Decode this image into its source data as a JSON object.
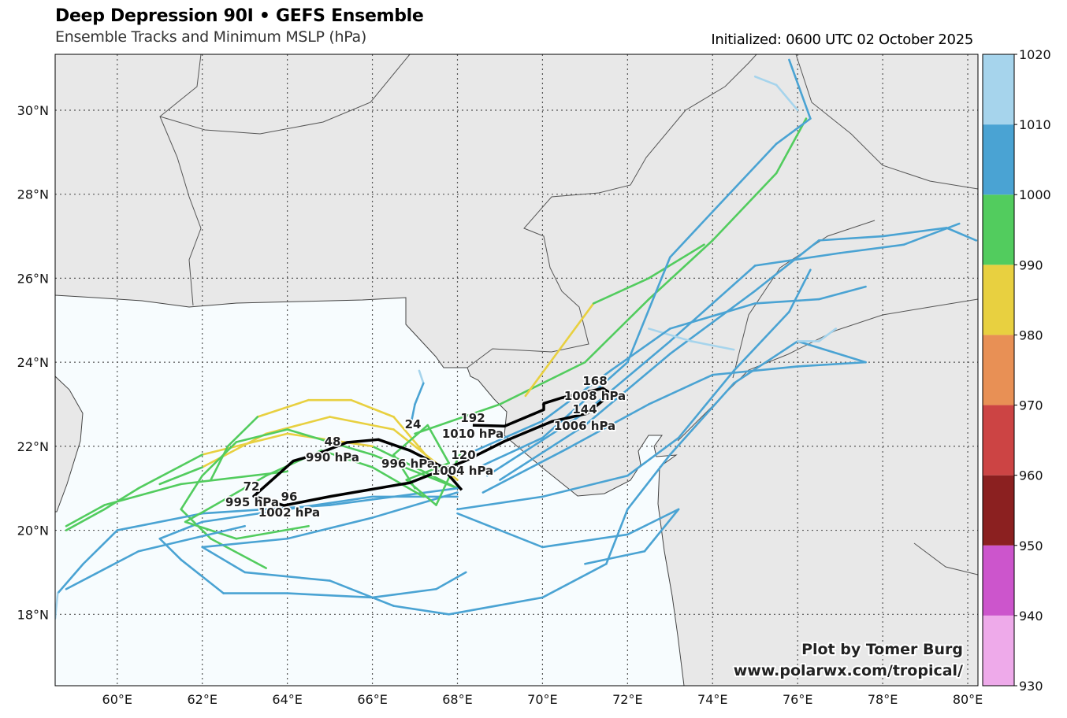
{
  "header": {
    "title": "Deep Depression 90I • GEFS Ensemble",
    "subtitle": "Ensemble Tracks and Minimum MSLP (hPa)",
    "initialized": "Initialized: 0600 UTC 02 October 2025"
  },
  "credit": {
    "line1": "Plot by Tomer Burg",
    "line2": "www.polarwx.com/tropical/"
  },
  "chart_data": {
    "type": "map-tracks",
    "extent": {
      "lon": [
        58.54,
        80.24
      ],
      "lat": [
        16.3,
        31.33
      ]
    },
    "lon_ticks": [
      {
        "v": 60,
        "label": "60°E"
      },
      {
        "v": 62,
        "label": "62°E"
      },
      {
        "v": 64,
        "label": "64°E"
      },
      {
        "v": 66,
        "label": "66°E"
      },
      {
        "v": 68,
        "label": "68°E"
      },
      {
        "v": 70,
        "label": "70°E"
      },
      {
        "v": 72,
        "label": "72°E"
      },
      {
        "v": 74,
        "label": "74°E"
      },
      {
        "v": 76,
        "label": "76°E"
      },
      {
        "v": 78,
        "label": "78°E"
      },
      {
        "v": 80,
        "label": "80°E"
      }
    ],
    "lat_ticks": [
      {
        "v": 18,
        "label": "18°N"
      },
      {
        "v": 20,
        "label": "20°N"
      },
      {
        "v": 22,
        "label": "22°N"
      },
      {
        "v": 24,
        "label": "24°N"
      },
      {
        "v": 26,
        "label": "26°N"
      },
      {
        "v": 28,
        "label": "28°N"
      },
      {
        "v": 30,
        "label": "30°N"
      }
    ],
    "colorbar": {
      "ticks": [
        "930",
        "940",
        "950",
        "960",
        "970",
        "980",
        "990",
        "1000",
        "1010",
        "1020"
      ],
      "bins": [
        {
          "min": 930,
          "max": 940,
          "color": "#eeaaea"
        },
        {
          "min": 940,
          "max": 950,
          "color": "#cc55cc"
        },
        {
          "min": 950,
          "max": 960,
          "color": "#8b2020"
        },
        {
          "min": 960,
          "max": 970,
          "color": "#cc4444"
        },
        {
          "min": 970,
          "max": 980,
          "color": "#e89055"
        },
        {
          "min": 980,
          "max": 990,
          "color": "#e8d040"
        },
        {
          "min": 990,
          "max": 1000,
          "color": "#52cc5e"
        },
        {
          "min": 1000,
          "max": 1010,
          "color": "#4aa3d3"
        },
        {
          "min": 1010,
          "max": 1020,
          "color": "#a6d4ec"
        }
      ]
    },
    "mean_track": [
      [
        68.1,
        20.96
      ],
      [
        67.62,
        21.52
      ],
      [
        66.88,
        21.9
      ],
      [
        66.14,
        22.16
      ],
      [
        65.4,
        22.09
      ],
      [
        64.66,
        21.8
      ],
      [
        64.14,
        21.65
      ],
      [
        63.21,
        20.81
      ],
      [
        63.92,
        20.59
      ],
      [
        65.03,
        20.81
      ],
      [
        66.88,
        21.13
      ],
      [
        68.18,
        21.65
      ],
      [
        69.11,
        22.12
      ],
      [
        70.22,
        22.59
      ],
      [
        71.05,
        22.78
      ],
      [
        71.61,
        23.25
      ],
      [
        71.42,
        23.38
      ],
      [
        70.44,
        23.15
      ],
      [
        70.03,
        23.02
      ],
      [
        70.03,
        22.87
      ],
      [
        69.11,
        22.48
      ],
      [
        68.36,
        22.5
      ]
    ],
    "mean_labels": [
      {
        "hour": "24",
        "pressure": "996 hPa"
      },
      {
        "hour": "48",
        "pressure": "990 hPa"
      },
      {
        "hour": "72",
        "pressure": "995 hPa"
      },
      {
        "hour": "96",
        "pressure": "1002 hPa"
      },
      {
        "hour": "120",
        "pressure": "1004 hPa"
      },
      {
        "hour": "144",
        "pressure": "1006 hPa"
      },
      {
        "hour": "168",
        "pressure": "1008 hPa"
      },
      {
        "hour": "192",
        "pressure": "1010 hPa"
      }
    ],
    "members": [
      [
        [
          68,
          21,
          998
        ],
        [
          66,
          22,
          992
        ],
        [
          64,
          22.3,
          988
        ],
        [
          62,
          21.8,
          986
        ],
        [
          60.5,
          21,
          990
        ],
        [
          59.7,
          20.5,
          996
        ],
        [
          58.8,
          20,
          998
        ]
      ],
      [
        [
          68,
          21.2,
          996
        ],
        [
          66.5,
          22.4,
          988
        ],
        [
          65,
          22.7,
          984
        ],
        [
          63.5,
          22.3,
          986
        ],
        [
          62,
          21.5,
          988
        ],
        [
          61,
          21.1,
          990
        ]
      ],
      [
        [
          67.5,
          21.5,
          994
        ],
        [
          66.5,
          22.7,
          986
        ],
        [
          65.5,
          23.1,
          984
        ],
        [
          64.5,
          23.1,
          986
        ],
        [
          63.3,
          22.7,
          988
        ],
        [
          62.6,
          22,
          990
        ],
        [
          62.2,
          21.2,
          992
        ]
      ],
      [
        [
          68,
          21,
          998
        ],
        [
          66,
          21.8,
          994
        ],
        [
          64,
          22.4,
          992
        ],
        [
          62.8,
          22.1,
          994
        ],
        [
          62,
          21.3,
          996
        ],
        [
          61.5,
          20.5,
          998
        ],
        [
          62.2,
          19.8,
          998
        ],
        [
          63.5,
          19.1,
          998
        ]
      ],
      [
        [
          68,
          20.8,
          1004
        ],
        [
          66,
          20.8,
          1002
        ],
        [
          64,
          20.5,
          1002
        ],
        [
          62,
          20.2,
          1004
        ],
        [
          61,
          19.8,
          1004
        ],
        [
          61.5,
          19.3,
          1006
        ],
        [
          62.5,
          18.5,
          1006
        ],
        [
          64,
          18.5,
          1006
        ],
        [
          66,
          18.4,
          1006
        ],
        [
          67.5,
          18.6,
          1006
        ],
        [
          68.2,
          19.0,
          1006
        ]
      ],
      [
        [
          68,
          20.9,
          1004
        ],
        [
          66,
          20.3,
          1004
        ],
        [
          64,
          19.8,
          1004
        ],
        [
          62,
          19.6,
          1006
        ],
        [
          63,
          19.0,
          1006
        ],
        [
          65,
          18.8,
          1006
        ],
        [
          66.5,
          18.2,
          1006
        ],
        [
          67.8,
          18.0,
          1006
        ],
        [
          70,
          18.4,
          1006
        ],
        [
          71.5,
          19.2,
          1006
        ],
        [
          72,
          20.5,
          1006
        ],
        [
          73,
          21.8,
          1006
        ],
        [
          74.5,
          23.5,
          1006
        ],
        [
          76,
          24.5,
          1006
        ],
        [
          77.6,
          24,
          1006
        ]
      ],
      [
        [
          68,
          21,
          1004
        ],
        [
          65,
          20.6,
          1004
        ],
        [
          62,
          20.4,
          1004
        ],
        [
          60,
          20,
          1006
        ],
        [
          59.2,
          19.2,
          1006
        ],
        [
          58.6,
          18.5,
          1008
        ],
        [
          58.54,
          17.9,
          1012
        ]
      ],
      [
        [
          67,
          22.3,
          996
        ],
        [
          69,
          23,
          996
        ],
        [
          71,
          24,
          994
        ],
        [
          72.5,
          25.5,
          992
        ],
        [
          74,
          26.9,
          994
        ],
        [
          75.5,
          28.5,
          996
        ],
        [
          76.2,
          29.8,
          998
        ]
      ],
      [
        [
          69.6,
          23.2,
          992
        ],
        [
          70.4,
          24.3,
          988
        ],
        [
          71.2,
          25.4,
          986
        ],
        [
          72.5,
          26,
          992
        ],
        [
          73.8,
          26.8,
          996
        ]
      ],
      [
        [
          68.5,
          21.5,
          1004
        ],
        [
          70,
          22.2,
          1004
        ],
        [
          72,
          24,
          1004
        ],
        [
          73,
          26.5,
          1004
        ],
        [
          74.2,
          27.8,
          1004
        ],
        [
          75.5,
          29.2,
          1004
        ],
        [
          76.3,
          29.8,
          1004
        ],
        [
          75.8,
          31.2,
          1006
        ]
      ],
      [
        [
          69,
          21.2,
          1004
        ],
        [
          71,
          22.5,
          1004
        ],
        [
          73,
          24.2,
          1006
        ],
        [
          75,
          25.7,
          1004
        ],
        [
          76.5,
          26.9,
          1004
        ],
        [
          78,
          27,
          1004
        ],
        [
          79.5,
          27.2,
          1004
        ],
        [
          80.2,
          26.9,
          1004
        ]
      ],
      [
        [
          68.6,
          20.9,
          1004
        ],
        [
          70.5,
          21.9,
          1004
        ],
        [
          72.5,
          23,
          1004
        ],
        [
          74,
          23.7,
          1004
        ],
        [
          76,
          23.9,
          1004
        ],
        [
          77.6,
          24.0,
          1004
        ]
      ],
      [
        [
          68.7,
          21.3,
          1004
        ],
        [
          71,
          22.8,
          1004
        ],
        [
          73,
          24.5,
          1004
        ],
        [
          75,
          26.3,
          1004
        ],
        [
          77,
          26.6,
          1006
        ],
        [
          78.5,
          26.8,
          1006
        ],
        [
          79.8,
          27.3,
          1006
        ]
      ],
      [
        [
          68,
          20.5,
          1004
        ],
        [
          70,
          20.8,
          1006
        ],
        [
          72,
          21.3,
          1006
        ],
        [
          73.2,
          22.2,
          1006
        ],
        [
          74.5,
          23.8,
          1006
        ],
        [
          75.8,
          25.2,
          1004
        ],
        [
          76.3,
          26.2,
          1004
        ]
      ],
      [
        [
          72.5,
          24.8,
          1010
        ],
        [
          73.5,
          24.5,
          1012
        ],
        [
          74.5,
          24.3,
          1012
        ]
      ],
      [
        [
          75,
          30.8,
          1012
        ],
        [
          75.5,
          30.6,
          1012
        ],
        [
          76,
          30,
          1012
        ]
      ],
      [
        [
          76,
          24.5,
          1012
        ],
        [
          76.5,
          24.5,
          1012
        ],
        [
          76.9,
          24.8,
          1012
        ]
      ],
      [
        [
          68,
          20.4,
          1004
        ],
        [
          70,
          19.6,
          1006
        ],
        [
          72,
          19.9,
          1006
        ],
        [
          73.2,
          20.5,
          1006
        ],
        [
          72.4,
          19.5,
          1006
        ],
        [
          71,
          19.2,
          1006
        ]
      ],
      [
        [
          67,
          21,
          996
        ],
        [
          66.5,
          21.8,
          994
        ],
        [
          67.3,
          22.5,
          996
        ],
        [
          67.8,
          21.6,
          998
        ],
        [
          66.8,
          21.2,
          996
        ],
        [
          67.5,
          20.6,
          998
        ],
        [
          68.1,
          21.9,
          998
        ]
      ],
      [
        [
          67.2,
          20.8,
          996
        ],
        [
          66,
          21.5,
          994
        ],
        [
          64.8,
          21.9,
          992
        ],
        [
          63.5,
          21.3,
          994
        ],
        [
          62.3,
          20.6,
          996
        ],
        [
          61.6,
          20.2,
          998
        ],
        [
          62.8,
          19.8,
          998
        ],
        [
          64.5,
          20.1,
          998
        ]
      ],
      [
        [
          63,
          20.1,
          1004
        ],
        [
          60.5,
          19.5,
          1006
        ],
        [
          58.8,
          18.6,
          1008
        ]
      ],
      [
        [
          64,
          21.4,
          994
        ],
        [
          61.5,
          21.1,
          996
        ],
        [
          59.7,
          20.6,
          998
        ],
        [
          58.8,
          20.1,
          998
        ]
      ],
      [
        [
          67.1,
          23.8,
          1012
        ],
        [
          67.2,
          23.5,
          1010
        ],
        [
          67,
          23,
          1004
        ],
        [
          66.9,
          22.5,
          1004
        ]
      ],
      [
        [
          68.2,
          21.8,
          1004
        ],
        [
          70,
          22.6,
          1004
        ],
        [
          71.6,
          23.8,
          1004
        ],
        [
          73,
          24.8,
          1004
        ],
        [
          75,
          25.4,
          1004
        ],
        [
          76.5,
          25.5,
          1004
        ],
        [
          77.6,
          25.8,
          1004
        ]
      ]
    ]
  }
}
